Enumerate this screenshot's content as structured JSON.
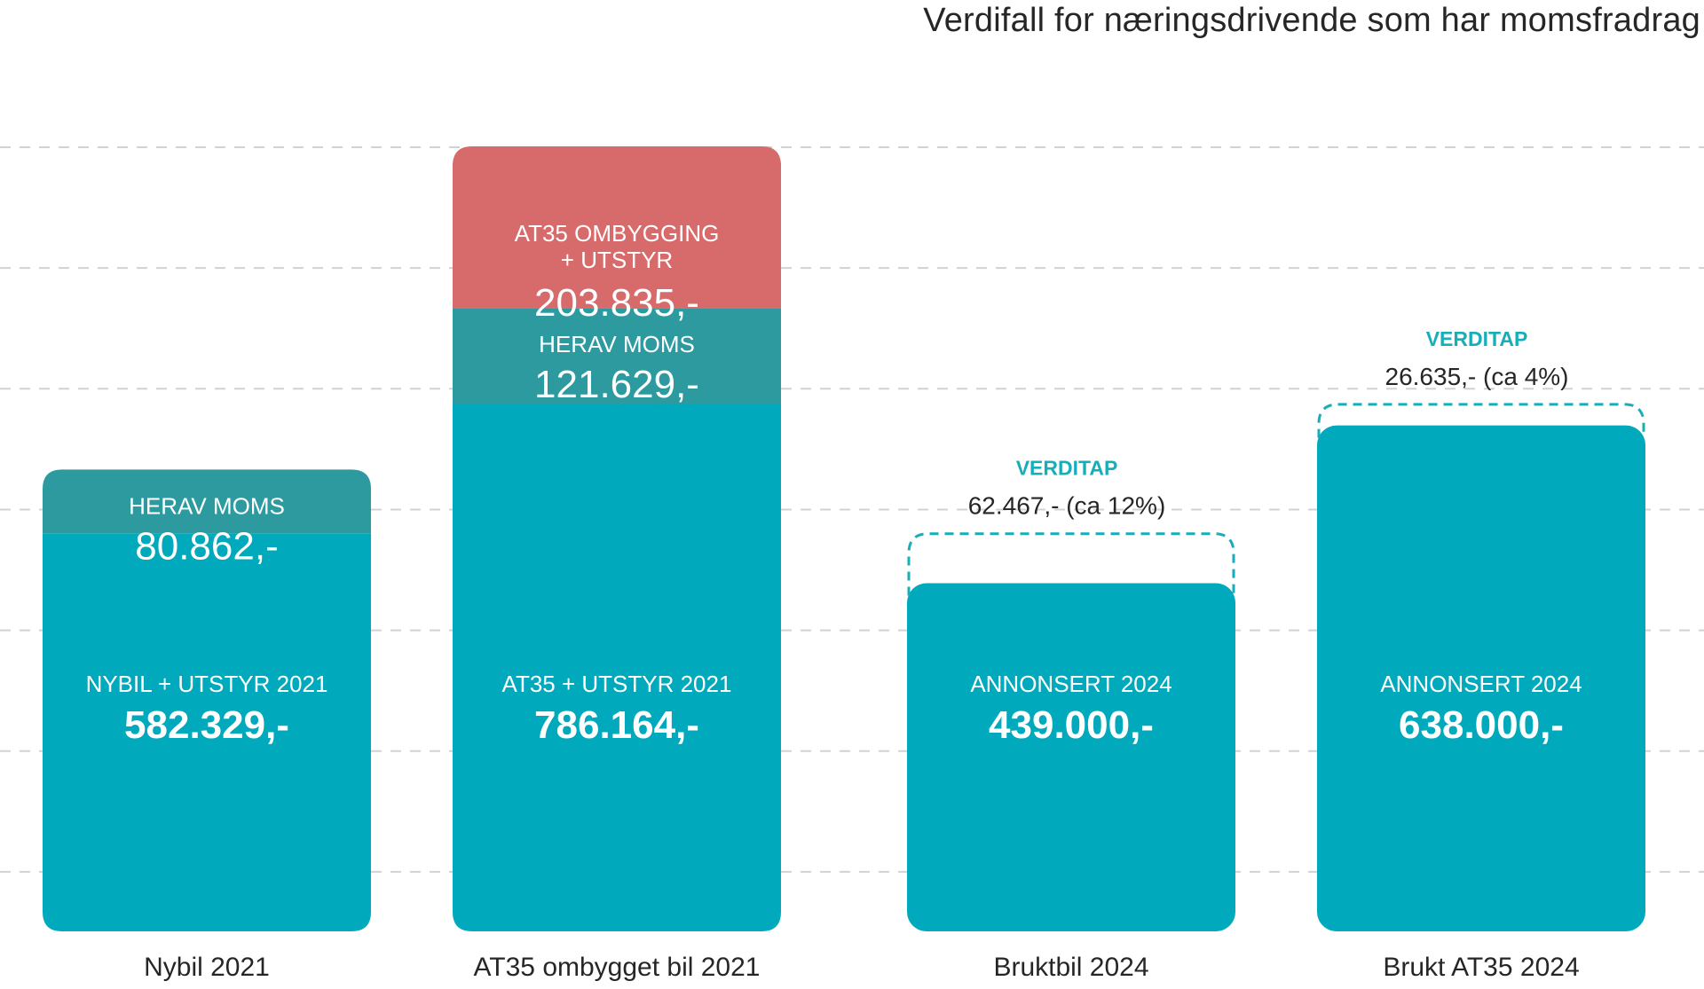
{
  "chart_data": {
    "type": "bar",
    "title": "Verdifall for næringsdrivende som har momsfradrag",
    "xlabel": "",
    "ylabel": "",
    "ylim": [
      0,
      1000000
    ],
    "grid": true,
    "colors": {
      "base": "#00a9bc",
      "vat": "#2d9aa0",
      "conversion": "#d76a6a",
      "loss": "#17aeba",
      "text_dark": "#262626",
      "text_light": "#ffffff"
    },
    "categories": [
      "Nybil 2021",
      "AT35 ombygget bil 2021",
      "Bruktbil 2024",
      "Brukt AT35 2024"
    ],
    "bars": [
      {
        "category": "Nybil 2021",
        "segments": [
          {
            "role": "base",
            "label": "NYBIL + UTSTYR 2021",
            "value_text": "582.329,-",
            "value": 582329
          },
          {
            "role": "vat",
            "label": "HERAV MOMS",
            "value_text": "80.862,-",
            "value": 80862
          }
        ]
      },
      {
        "category": "AT35 ombygget bil 2021",
        "segments": [
          {
            "role": "base",
            "label": "AT35 + UTSTYR 2021",
            "value_text": "786.164,-",
            "value": 786164
          },
          {
            "role": "vat",
            "label": "HERAV MOMS",
            "value_text": "121.629,-",
            "value": 121629
          },
          {
            "role": "conversion",
            "label_lines": [
              "AT35 OMBYGGING",
              "+ UTSTYR"
            ],
            "value_text": "203.835,-",
            "value": 203835
          }
        ]
      },
      {
        "category": "Bruktbil 2024",
        "segments": [
          {
            "role": "base",
            "label": "ANNONSERT 2024",
            "value_text": "439.000,-",
            "value": 439000
          }
        ],
        "loss": {
          "label": "VERDITAP",
          "value_text": "62.467,- (ca 12%)",
          "value": 62467,
          "percent": 12
        }
      },
      {
        "category": "Brukt AT35 2024",
        "segments": [
          {
            "role": "base",
            "label": "ANNONSERT 2024",
            "value_text": "638.000,-",
            "value": 638000
          }
        ],
        "loss": {
          "label": "VERDITAP",
          "value_text": "26.635,- (ca 4%)",
          "value": 26635,
          "percent": 4
        }
      }
    ]
  }
}
